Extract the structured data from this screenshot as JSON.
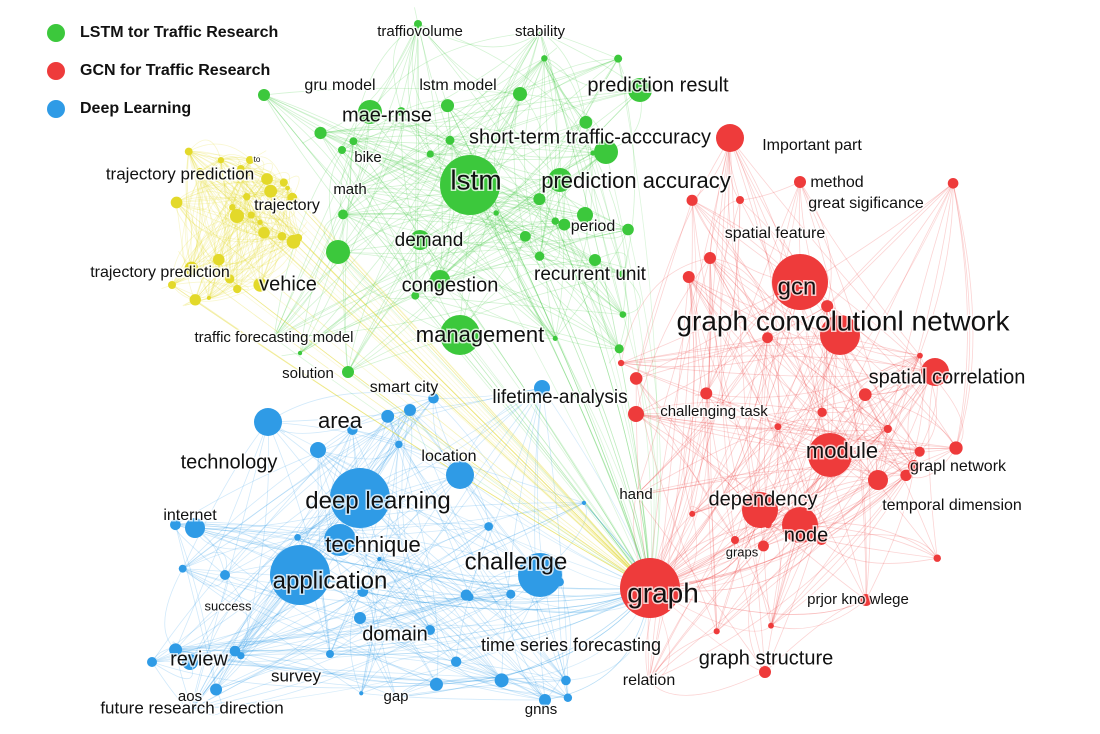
{
  "clusters": [
    {
      "name": "LSTM tor Traffic Research",
      "color": "#3cc83c",
      "nodes": [
        "traffiovolume",
        "stability",
        "gru model",
        "lstm model",
        "prediction result",
        "mae-rmse",
        "short-term traffic-acccuracy",
        "bike",
        "lstm",
        "prediction accuracy",
        "math",
        "demand",
        "period",
        "congestion",
        "recurrent unit",
        "vehice",
        "management",
        "traffic forecasting model",
        "solution"
      ]
    },
    {
      "name": "GCN for Traffic Research",
      "color": "#ee3b3b",
      "nodes": [
        "Important part",
        "method",
        "great sigificance",
        "spatial feature",
        "gcn",
        "graph convolutionl network",
        "spatial correlation",
        "challenging task",
        "module",
        "grapl network",
        "hand",
        "dependency",
        "temporal dimension",
        "node",
        "graps",
        "graph",
        "prjor kno wlege",
        "graph structure",
        "relation"
      ]
    },
    {
      "name": "Deep Learning",
      "color": "#2f9be6",
      "nodes": [
        "smart city",
        "lifetime-analysis",
        "area",
        "technology",
        "location",
        "deep learning",
        "internet",
        "technique",
        "challenge",
        "application",
        "success",
        "domain",
        "review",
        "survey",
        "time series forecasting",
        "aos",
        "gap",
        "future research direction",
        "gnns"
      ]
    },
    {
      "color": "#e3d92a",
      "nodes": [
        "trajectory prediction",
        "to",
        "trajectory",
        "trajectory prediction"
      ]
    }
  ]
}
